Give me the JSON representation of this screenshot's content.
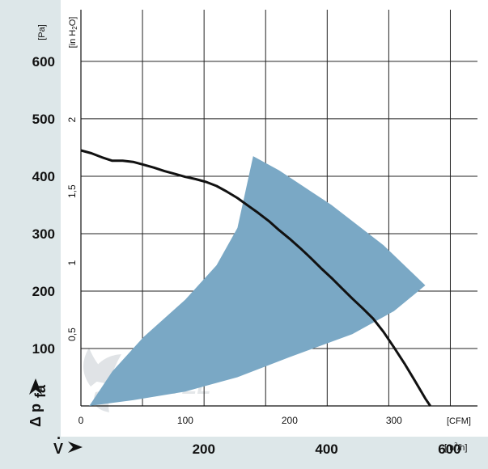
{
  "chart_data": {
    "type": "line",
    "units": {
      "pressure_primary": "[Pa]",
      "pressure_secondary": "[in H2O]",
      "flow_primary": "[CFM]",
      "flow_secondary": "[m³/h]"
    },
    "y_axis_symbol": "Δ p",
    "y_axis_subscript": "fa",
    "x_axis_symbol": "V̇",
    "x_axis_symbol_parts": {
      "letter": "V",
      "dot": "·"
    },
    "xlim_cfm": [
      0,
      380
    ],
    "ylim_pa": [
      0,
      690
    ],
    "grid": true,
    "pa_ticks": [
      {
        "value": 100,
        "label": "100"
      },
      {
        "value": 200,
        "label": "200"
      },
      {
        "value": 300,
        "label": "300"
      },
      {
        "value": 400,
        "label": "400"
      },
      {
        "value": 500,
        "label": "500"
      },
      {
        "value": 600,
        "label": "600"
      }
    ],
    "inh2o_ticks": [
      {
        "value": 0.5,
        "label": "0,5"
      },
      {
        "value": 1,
        "label": "1"
      },
      {
        "value": 1.5,
        "label": "1,5"
      },
      {
        "value": 2,
        "label": "2"
      }
    ],
    "cfm_ticks": [
      {
        "value": 0,
        "label": "0"
      },
      {
        "value": 100,
        "label": "100"
      },
      {
        "value": 200,
        "label": "200"
      },
      {
        "value": 300,
        "label": "300"
      }
    ],
    "m3h_ticks": [
      {
        "value": 200,
        "label": "200"
      },
      {
        "value": 400,
        "label": "400"
      },
      {
        "value": 600,
        "label": "600"
      }
    ],
    "grid_cfm": [
      0,
      59,
      118,
      177,
      236,
      295,
      354
    ],
    "fan_curve": {
      "x": [
        0,
        10,
        20,
        30,
        40,
        50,
        60,
        70,
        80,
        90,
        100,
        110,
        120,
        130,
        140,
        150,
        160,
        170,
        180,
        190,
        200,
        210,
        220,
        230,
        240,
        250,
        260,
        270,
        280,
        290,
        300,
        310,
        320,
        330,
        340,
        350,
        360,
        370
      ],
      "y": [
        445,
        440,
        433,
        427,
        427,
        425,
        420,
        415,
        409,
        404,
        399,
        395,
        390,
        383,
        373,
        362,
        349,
        336,
        322,
        306,
        291,
        275,
        258,
        240,
        223,
        205,
        187,
        170,
        152,
        129,
        102,
        74,
        44,
        13,
        -14,
        -41,
        -63,
        -86
      ]
    },
    "operating_area": {
      "x": [
        8,
        30,
        60,
        100,
        130,
        150,
        165,
        190,
        240,
        290,
        330,
        300,
        260,
        200,
        150,
        100,
        50,
        8
      ],
      "y": [
        0,
        60,
        120,
        185,
        245,
        310,
        435,
        410,
        350,
        280,
        210,
        165,
        125,
        85,
        50,
        25,
        10,
        0
      ]
    },
    "colors": {
      "operating_area": "#7aa8c5",
      "curve": "#111111",
      "grid": "#222222",
      "axis_panel": "#dde7e9"
    },
    "watermark": "VENTEL"
  }
}
